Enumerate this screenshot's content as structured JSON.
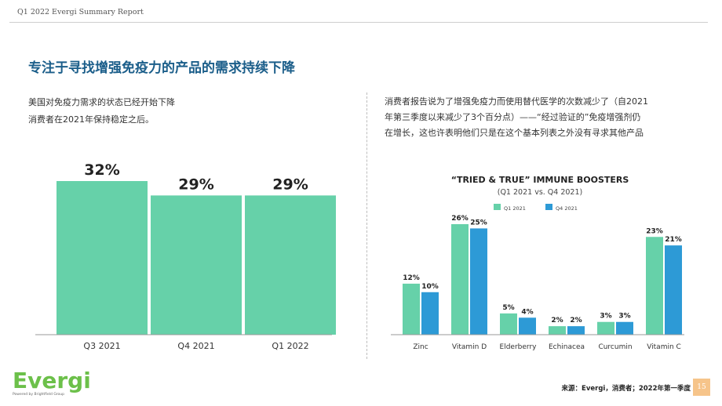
{
  "header": {
    "report_title": "Q1 2022 Evergi Summary Report"
  },
  "headline": "专注于寻找增强免疫力的产品的需求持续下降",
  "left_text": {
    "line1": "美国对免疫力需求的状态已经开始下降",
    "line2": "消费者在2021年保持稳定之后。"
  },
  "right_text": {
    "line1": "消费者报告说为了增强免疫力而使用替代医学的次数减少了（自2021",
    "line2": "年第三季度以来减少了3个百分点）——“经过验证的”免疫增强剂仍",
    "line3": "在增长，这也许表明他们只是在这个基本列表之外没有寻求其他产品"
  },
  "footer": {
    "logo_text": "Evergi",
    "logo_sub": "Powered by Brightfield Group",
    "source": "来源：Evergi，消费者；2022年第一季度",
    "page_number": "15"
  },
  "colors": {
    "green": "#66d1a9",
    "blue": "#2d9ad6",
    "headline": "#1b5e8a"
  },
  "chart_data": [
    {
      "type": "bar",
      "categories": [
        "Q3 2021",
        "Q4 2021",
        "Q1 2022"
      ],
      "values": [
        32,
        29,
        29
      ],
      "data_labels": [
        "32%",
        "29%",
        "29%"
      ],
      "title": "",
      "xlabel": "",
      "ylabel": "",
      "ylim": [
        0,
        32
      ],
      "grid": false
    },
    {
      "type": "bar",
      "title": "“TRIED & TRUE” IMMUNE BOOSTERS",
      "subtitle": "(Q1 2021 vs. Q4 2021)",
      "categories": [
        "Zinc",
        "Vitamin D",
        "Elderberry",
        "Echinacea",
        "Curcumin",
        "Vitamin C"
      ],
      "series": [
        {
          "name": "Q1 2021",
          "values": [
            12,
            26,
            5,
            2,
            3,
            23
          ],
          "labels": [
            "12%",
            "26%",
            "5%",
            "2%",
            "3%",
            "23%"
          ]
        },
        {
          "name": "Q4 2021",
          "values": [
            10,
            25,
            4,
            2,
            3,
            21
          ],
          "labels": [
            "10%",
            "25%",
            "4%",
            "2%",
            "3%",
            "21%"
          ]
        }
      ],
      "xlabel": "",
      "ylabel": "",
      "ylim": [
        0,
        26
      ],
      "legend": "top-left",
      "grid": false
    }
  ]
}
